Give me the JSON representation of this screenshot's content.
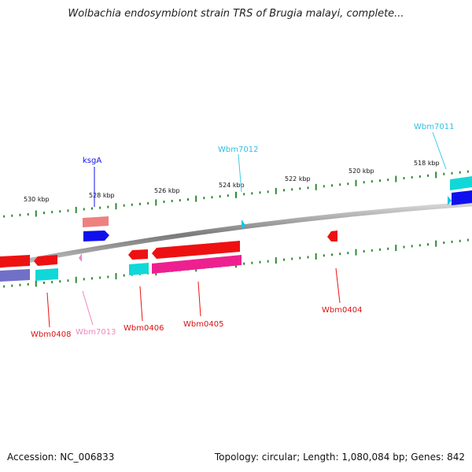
{
  "title": "Wolbachia endosymbiont strain TRS of Brugia malayi, complete...",
  "footer": {
    "accession": "Accession: NC_006833",
    "summary": "Topology: circular; Length: 1,080,084 bp; Genes: 842"
  },
  "colors": {
    "backbone": "#8a8a8a",
    "tick": "#2e8b2e",
    "red": "#ee1111",
    "salmon": "#ee8080",
    "blue": "#1010ee",
    "cyan": "#10d8d8",
    "magenta": "#ee2090",
    "pink": "#ee88c0",
    "slate": "#7070c8"
  },
  "scale_labels": [
    "530 kbp",
    "528 kbp",
    "526 kbp",
    "524 kbp",
    "522 kbp",
    "520 kbp",
    "518 kbp"
  ],
  "gene_labels": {
    "ksgA": "ksgA",
    "wbm7012": "Wbm7012",
    "wbm7011": "Wbm7011",
    "wbm0408": "Wbm0408",
    "wbm7013": "Wbm7013",
    "wbm0406": "Wbm0406",
    "wbm0405": "Wbm0405",
    "wbm0404": "Wbm0404"
  }
}
